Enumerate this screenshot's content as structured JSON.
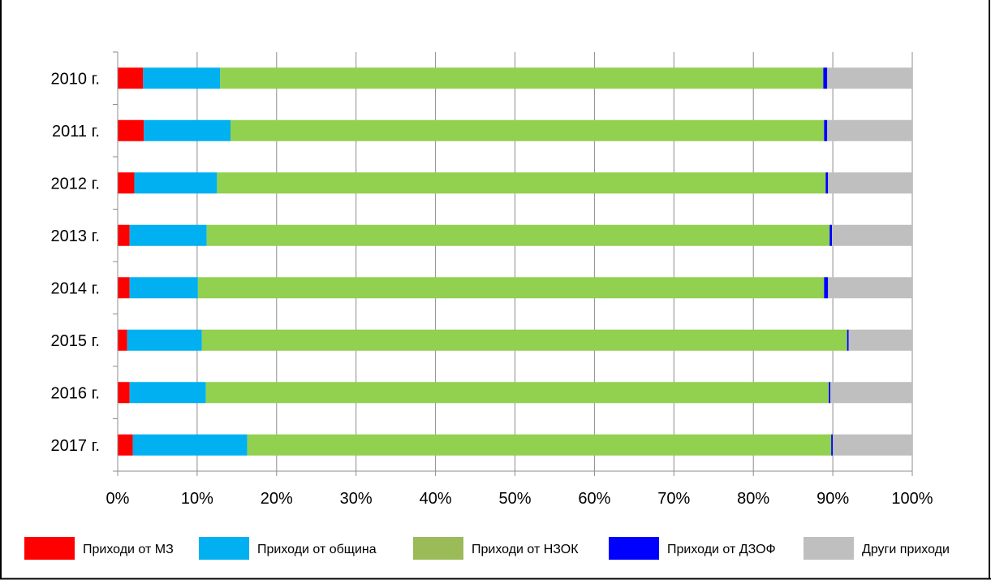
{
  "chart_data": {
    "type": "bar",
    "orientation": "horizontal",
    "stacked": "percent",
    "title": "",
    "categories": [
      "2010 г.",
      "2011 г.",
      "2012 г.",
      "2013 г.",
      "2014 г.",
      "2015 г.",
      "2016 г.",
      "2017 г."
    ],
    "series": [
      {
        "name": "Приходи от МЗ",
        "color": "#ff0000",
        "values": [
          3.2,
          3.3,
          2.1,
          1.5,
          1.5,
          1.2,
          1.5,
          1.9
        ]
      },
      {
        "name": "Приходи от община",
        "color": "#00b0f0",
        "values": [
          9.7,
          10.9,
          10.4,
          9.7,
          8.6,
          9.4,
          9.6,
          14.4
        ]
      },
      {
        "name": "Приходи от НЗОК",
        "color": "#92d050",
        "legend_color": "#9bbb59",
        "values": [
          75.9,
          74.7,
          76.6,
          78.4,
          78.8,
          81.2,
          78.4,
          73.5
        ]
      },
      {
        "name": "Приходи от ДЗОФ",
        "color": "#0000ff",
        "values": [
          0.5,
          0.4,
          0.3,
          0.3,
          0.5,
          0.2,
          0.2,
          0.2
        ]
      },
      {
        "name": "Други приходи",
        "color": "#bfbfbf",
        "values": [
          10.7,
          10.7,
          10.6,
          10.1,
          10.6,
          8.0,
          10.3,
          10.0
        ]
      }
    ],
    "x_ticks": [
      "0%",
      "10%",
      "20%",
      "30%",
      "40%",
      "50%",
      "60%",
      "70%",
      "80%",
      "90%",
      "100%"
    ],
    "xlim": [
      0,
      100
    ],
    "grid": true,
    "legend_position": "bottom"
  }
}
